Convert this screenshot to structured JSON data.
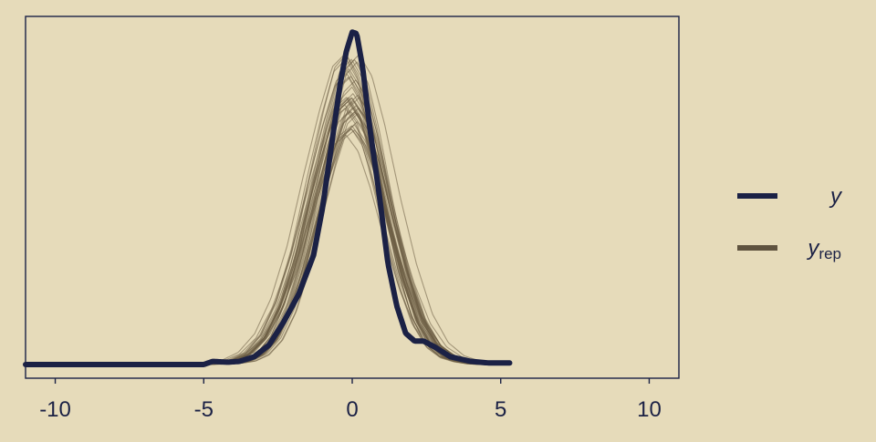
{
  "chart_data": {
    "type": "line",
    "title": "",
    "xlabel": "",
    "ylabel": "",
    "xlim": [
      -11,
      11
    ],
    "ylim": [
      0,
      0.445
    ],
    "grid": false,
    "y_axis_labels_shown": false,
    "legend_placement": "right",
    "xticks": [
      -10,
      -5,
      0,
      5,
      10
    ],
    "xtick_labels": [
      "-10",
      "-5",
      "0",
      "5",
      "10"
    ],
    "colors": {
      "background": "#e6dbba",
      "frame": "#1a2145",
      "y": "#1b2145",
      "y_rep": "#6b5c44",
      "legend_y_rep": "#5f533f",
      "text": "#1b2145"
    },
    "legend": [
      {
        "key": "y",
        "symbol": "y",
        "subscript": ""
      },
      {
        "key": "y_rep",
        "symbol": "y",
        "subscript": "rep"
      }
    ],
    "series": [
      {
        "name": "y",
        "x": [
          -11,
          -10,
          -8,
          -6,
          -5,
          -4.7,
          -4.2,
          -3.8,
          -3.3,
          -2.8,
          -2.3,
          -1.8,
          -1.3,
          -1.0,
          -0.7,
          -0.4,
          -0.2,
          0,
          0.15,
          0.35,
          0.6,
          0.9,
          1.2,
          1.5,
          1.8,
          2.1,
          2.4,
          2.8,
          3.3,
          4.0,
          4.6,
          5.3
        ],
        "y": [
          0.0,
          0.0,
          0.0,
          0.0,
          0.0,
          0.004,
          0.003,
          0.004,
          0.01,
          0.025,
          0.055,
          0.09,
          0.14,
          0.2,
          0.28,
          0.36,
          0.4,
          0.425,
          0.423,
          0.38,
          0.3,
          0.22,
          0.13,
          0.075,
          0.04,
          0.03,
          0.03,
          0.022,
          0.01,
          0.004,
          0.002,
          0.002
        ]
      },
      {
        "name": "y_rep",
        "x": [
          -5.5,
          -4.8,
          -4.3,
          -3.8,
          -3.3,
          -2.8,
          -2.3,
          -1.8,
          -1.3,
          -0.8,
          -0.4,
          0,
          0.4,
          0.8,
          1.3,
          1.8,
          2.3,
          2.8,
          3.3,
          3.8,
          4.3,
          4.8
        ],
        "y": [
          0.0,
          0.001,
          0.002,
          0.005,
          0.014,
          0.035,
          0.075,
          0.135,
          0.215,
          0.29,
          0.34,
          0.355,
          0.33,
          0.275,
          0.19,
          0.115,
          0.058,
          0.025,
          0.01,
          0.004,
          0.001,
          0.0
        ],
        "draws": 40
      }
    ]
  }
}
